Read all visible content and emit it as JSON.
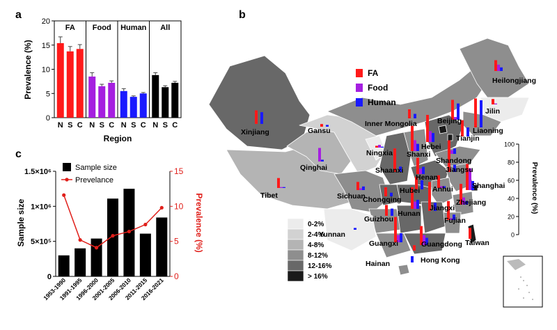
{
  "chart_data": [
    {
      "panel": "a",
      "type": "bar",
      "ylabel": "Prevalence (%)",
      "xlabel": "Region",
      "ylim": [
        0,
        20
      ],
      "yticks": [
        0,
        5,
        10,
        15,
        20
      ],
      "groups": [
        {
          "name": "FA",
          "color": "#ff1a1a",
          "categories": [
            "N",
            "S",
            "C"
          ],
          "values": [
            15.4,
            13.7,
            14.2
          ],
          "errors": [
            1.3,
            1.0,
            0.9
          ]
        },
        {
          "name": "Food",
          "color": "#a51fe0",
          "categories": [
            "N",
            "S",
            "C"
          ],
          "values": [
            8.5,
            6.5,
            7.2
          ],
          "errors": [
            0.8,
            0.4,
            0.4
          ]
        },
        {
          "name": "Human",
          "color": "#1a1aff",
          "categories": [
            "N",
            "S",
            "C"
          ],
          "values": [
            5.5,
            4.3,
            5.0
          ],
          "errors": [
            0.5,
            0.2,
            0.2
          ]
        },
        {
          "name": "All",
          "color": "#000000",
          "categories": [
            "N",
            "S",
            "C"
          ],
          "values": [
            8.8,
            6.3,
            7.2
          ],
          "errors": [
            0.5,
            0.3,
            0.3
          ]
        }
      ]
    },
    {
      "panel": "c",
      "type": "bar+line",
      "categories": [
        "1953-1990",
        "1991-1995",
        "1996-2000",
        "2001-2005",
        "2006-2010",
        "2011-2015",
        "2016-2021"
      ],
      "series": [
        {
          "name": "Sample size",
          "kind": "bar",
          "color": "#000000",
          "values": [
            300000,
            400000,
            540000,
            1110000,
            1250000,
            610000,
            840000
          ]
        },
        {
          "name": "Prevelance",
          "kind": "line",
          "color": "#e0201b",
          "values": [
            11.6,
            5.2,
            4.1,
            5.8,
            6.4,
            7.4,
            9.8
          ]
        }
      ],
      "ylabel_left": "Sample size",
      "ylabel_right": "Prevalence (%)",
      "ylim_left": [
        0,
        1500000
      ],
      "yticks_left": [
        "0",
        "5×10⁵",
        "1×10⁶",
        "1.5×10⁶"
      ],
      "ylim_right": [
        0,
        15
      ],
      "yticks_right": [
        "0",
        "5",
        "10",
        "15"
      ]
    },
    {
      "panel": "b",
      "type": "choropleth-map",
      "legend_series": [
        {
          "name": "FA",
          "color": "#ff1a1a"
        },
        {
          "name": "Food",
          "color": "#a51fe0"
        },
        {
          "name": "Human",
          "color": "#1a1aff"
        }
      ],
      "scale_label": "Prevalence (%)",
      "scale_ticks": [
        "0",
        "20",
        "40",
        "60",
        "80",
        "100"
      ],
      "scale_range": [
        0,
        100
      ],
      "classes": [
        {
          "label": "0-2%",
          "color": "#ececec"
        },
        {
          "label": "2-4%",
          "color": "#d2d2d2"
        },
        {
          "label": "4-8%",
          "color": "#b4b4b4"
        },
        {
          "label": "8-12%",
          "color": "#8e8e8e"
        },
        {
          "label": "12-16%",
          "color": "#686868"
        },
        {
          "label": "> 16%",
          "color": "#1a1a1a"
        }
      ],
      "provinces": [
        {
          "name": "Heilongjiang",
          "fa": 12,
          "food": 7,
          "human": 4
        },
        {
          "name": "Jilin",
          "fa": 6,
          "food": 1,
          "human": 0
        },
        {
          "name": "Liaoning",
          "fa": 32,
          "food": 0,
          "human": 30
        },
        {
          "name": "Inner Mongolia",
          "fa": 10,
          "food": 0,
          "human": 5
        },
        {
          "name": "Beijing",
          "fa": 22,
          "food": 3,
          "human": 18
        },
        {
          "name": "Tianjin",
          "fa": 18,
          "food": 0,
          "human": 10
        },
        {
          "name": "Hebei",
          "fa": 30,
          "food": 12,
          "human": 10
        },
        {
          "name": "Xinjiang",
          "fa": 15,
          "food": 0,
          "human": 13
        },
        {
          "name": "Gansu",
          "fa": 3,
          "food": 0,
          "human": 2
        },
        {
          "name": "Ningxia",
          "fa": 2,
          "food": 3,
          "human": 1
        },
        {
          "name": "Shanxi",
          "fa": 28,
          "food": 12,
          "human": 8
        },
        {
          "name": "Shandong",
          "fa": 15,
          "food": 4,
          "human": 6
        },
        {
          "name": "Qinghai",
          "fa": 0,
          "food": 15,
          "human": 2
        },
        {
          "name": "Shaanxi",
          "fa": 26,
          "food": 0,
          "human": 6
        },
        {
          "name": "Henan",
          "fa": 18,
          "food": 6,
          "human": 8
        },
        {
          "name": "Jiangsu",
          "fa": 24,
          "food": 0,
          "human": 8
        },
        {
          "name": "Tibet",
          "fa": 11,
          "food": 1,
          "human": 1
        },
        {
          "name": "Sichuan",
          "fa": 9,
          "food": 2,
          "human": 4
        },
        {
          "name": "Hubei",
          "fa": 14,
          "food": 0,
          "human": 10
        },
        {
          "name": "Anhui",
          "fa": 14,
          "food": 2,
          "human": 2
        },
        {
          "name": "Shanghai",
          "fa": 29,
          "food": 24,
          "human": 10
        },
        {
          "name": "Chongqing",
          "fa": 10,
          "food": 0,
          "human": 4
        },
        {
          "name": "Zhejiang",
          "fa": 23,
          "food": 8,
          "human": 4
        },
        {
          "name": "Guizhou",
          "fa": 12,
          "food": 0,
          "human": 8
        },
        {
          "name": "Hunan",
          "fa": 24,
          "food": 8,
          "human": 10
        },
        {
          "name": "Jiangxi",
          "fa": 32,
          "food": 0,
          "human": 9
        },
        {
          "name": "Fujian",
          "fa": 21,
          "food": 2,
          "human": 6
        },
        {
          "name": "Yunnan",
          "fa": 0,
          "food": 0,
          "human": 2
        },
        {
          "name": "Guangxi",
          "fa": 28,
          "food": 8,
          "human": 10
        },
        {
          "name": "Guangdong",
          "fa": 21,
          "food": 11,
          "human": 8
        },
        {
          "name": "Taiwan",
          "fa": 12,
          "food": 0,
          "human": 0
        },
        {
          "name": "Hainan",
          "fa": 0,
          "food": 0,
          "human": 7
        },
        {
          "name": "Hong Kong",
          "fa": 6,
          "food": 0,
          "human": 0
        }
      ]
    }
  ],
  "panels": {
    "a": "a",
    "b": "b",
    "c": "c"
  }
}
